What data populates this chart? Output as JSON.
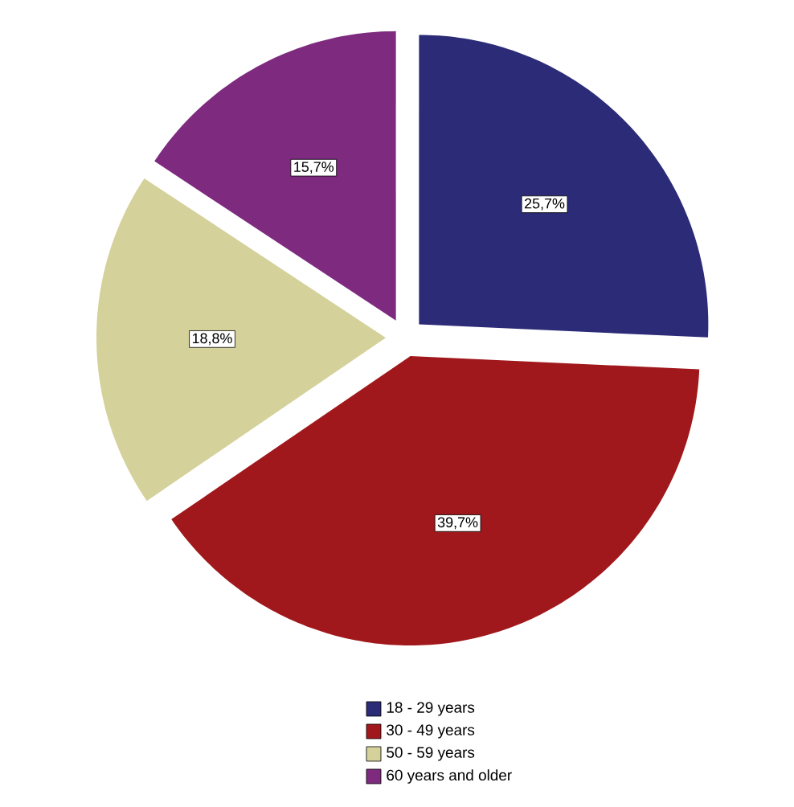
{
  "chart_data": {
    "type": "pie",
    "categories": [
      "18 - 29 years",
      "30 - 49 years",
      "50 - 59 years",
      "60 years and older"
    ],
    "values": [
      25.7,
      39.7,
      18.8,
      15.7
    ],
    "colors": [
      "#2b2b77",
      "#a0181b",
      "#d4d19a",
      "#7d2a7f"
    ],
    "value_labels": [
      "25,7%",
      "39,7%",
      "18,8%",
      "15,7%"
    ],
    "legend": "bottom"
  }
}
